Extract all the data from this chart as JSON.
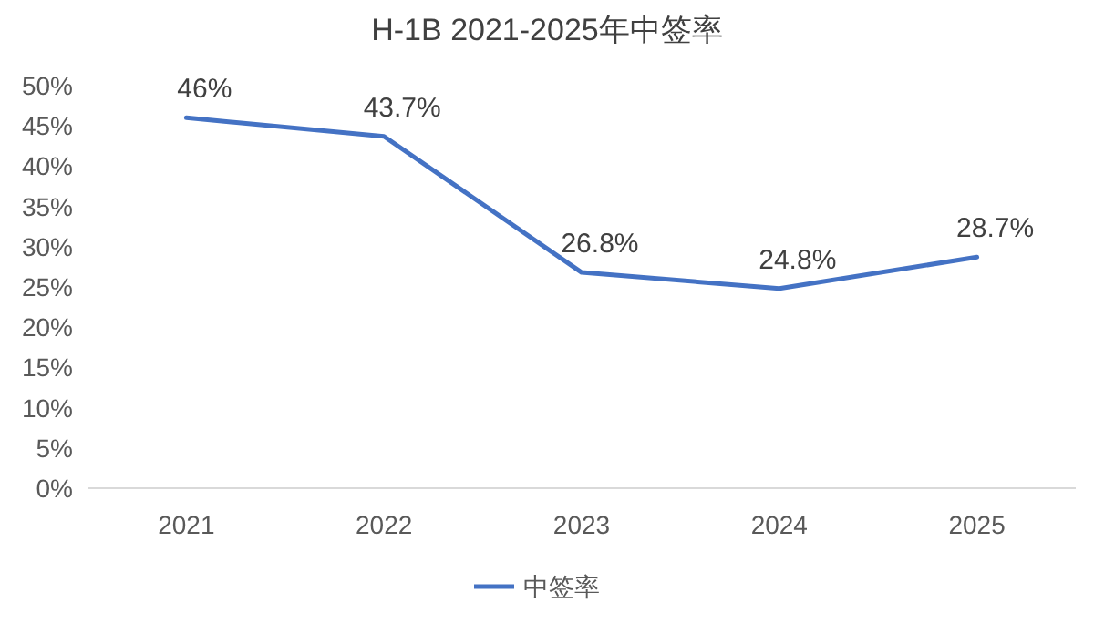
{
  "chart_data": {
    "type": "line",
    "title": "H-1B 2021-2025年中签率",
    "categories": [
      "2021",
      "2022",
      "2023",
      "2024",
      "2025"
    ],
    "series": [
      {
        "name": "中签率",
        "color": "#4472c4",
        "values": [
          46,
          43.7,
          26.8,
          24.8,
          28.7
        ],
        "value_labels": [
          "46%",
          "43.7%",
          "26.8%",
          "24.8%",
          "28.7%"
        ]
      }
    ],
    "ylim": [
      0,
      50
    ],
    "yticks": [
      {
        "value": 0,
        "label": "0%"
      },
      {
        "value": 5,
        "label": "5%"
      },
      {
        "value": 10,
        "label": "10%"
      },
      {
        "value": 15,
        "label": "15%"
      },
      {
        "value": 20,
        "label": "20%"
      },
      {
        "value": 25,
        "label": "25%"
      },
      {
        "value": 30,
        "label": "30%"
      },
      {
        "value": 35,
        "label": "35%"
      },
      {
        "value": 40,
        "label": "40%"
      },
      {
        "value": 45,
        "label": "45%"
      },
      {
        "value": 50,
        "label": "50%"
      }
    ],
    "legend": "bottom"
  }
}
